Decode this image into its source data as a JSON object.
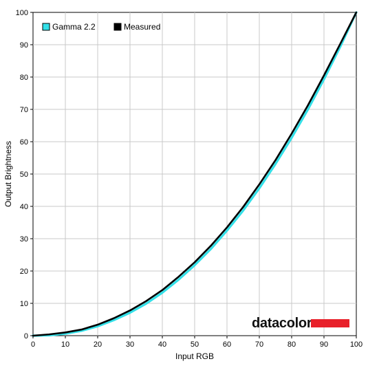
{
  "chart_data": {
    "type": "line",
    "title": "",
    "xlabel": "Input RGB",
    "ylabel": "Output Brightness",
    "xlim": [
      0,
      100
    ],
    "ylim": [
      0,
      100
    ],
    "xticks": [
      0,
      10,
      20,
      30,
      40,
      50,
      60,
      70,
      80,
      90,
      100
    ],
    "yticks": [
      0,
      10,
      20,
      30,
      40,
      50,
      60,
      70,
      80,
      90,
      100
    ],
    "grid": true,
    "legend_position": "top-left",
    "series": [
      {
        "name": "Gamma 2.2",
        "color": "#33e0e8",
        "x": [
          0,
          5,
          10,
          15,
          20,
          25,
          30,
          35,
          40,
          45,
          50,
          55,
          60,
          65,
          70,
          75,
          80,
          85,
          90,
          95,
          100
        ],
        "y": [
          0,
          0.1,
          0.6,
          1.5,
          2.9,
          4.8,
          7.1,
          9.9,
          13.3,
          17.3,
          21.8,
          26.8,
          32.5,
          38.7,
          45.6,
          53.1,
          61.2,
          69.9,
          79.3,
          89.3,
          100
        ]
      },
      {
        "name": "Measured",
        "color": "#000000",
        "x": [
          0,
          5,
          10,
          15,
          20,
          25,
          30,
          35,
          40,
          45,
          50,
          55,
          60,
          65,
          70,
          75,
          80,
          85,
          90,
          95,
          100
        ],
        "y": [
          0,
          0.4,
          1.0,
          1.9,
          3.4,
          5.4,
          7.8,
          10.7,
          14.1,
          18.2,
          22.7,
          27.8,
          33.5,
          39.8,
          46.8,
          54.3,
          62.5,
          71.2,
          80.5,
          90.2,
          100
        ]
      }
    ]
  },
  "watermark": {
    "text": "datacolor",
    "bar_color": "#e8202a"
  }
}
